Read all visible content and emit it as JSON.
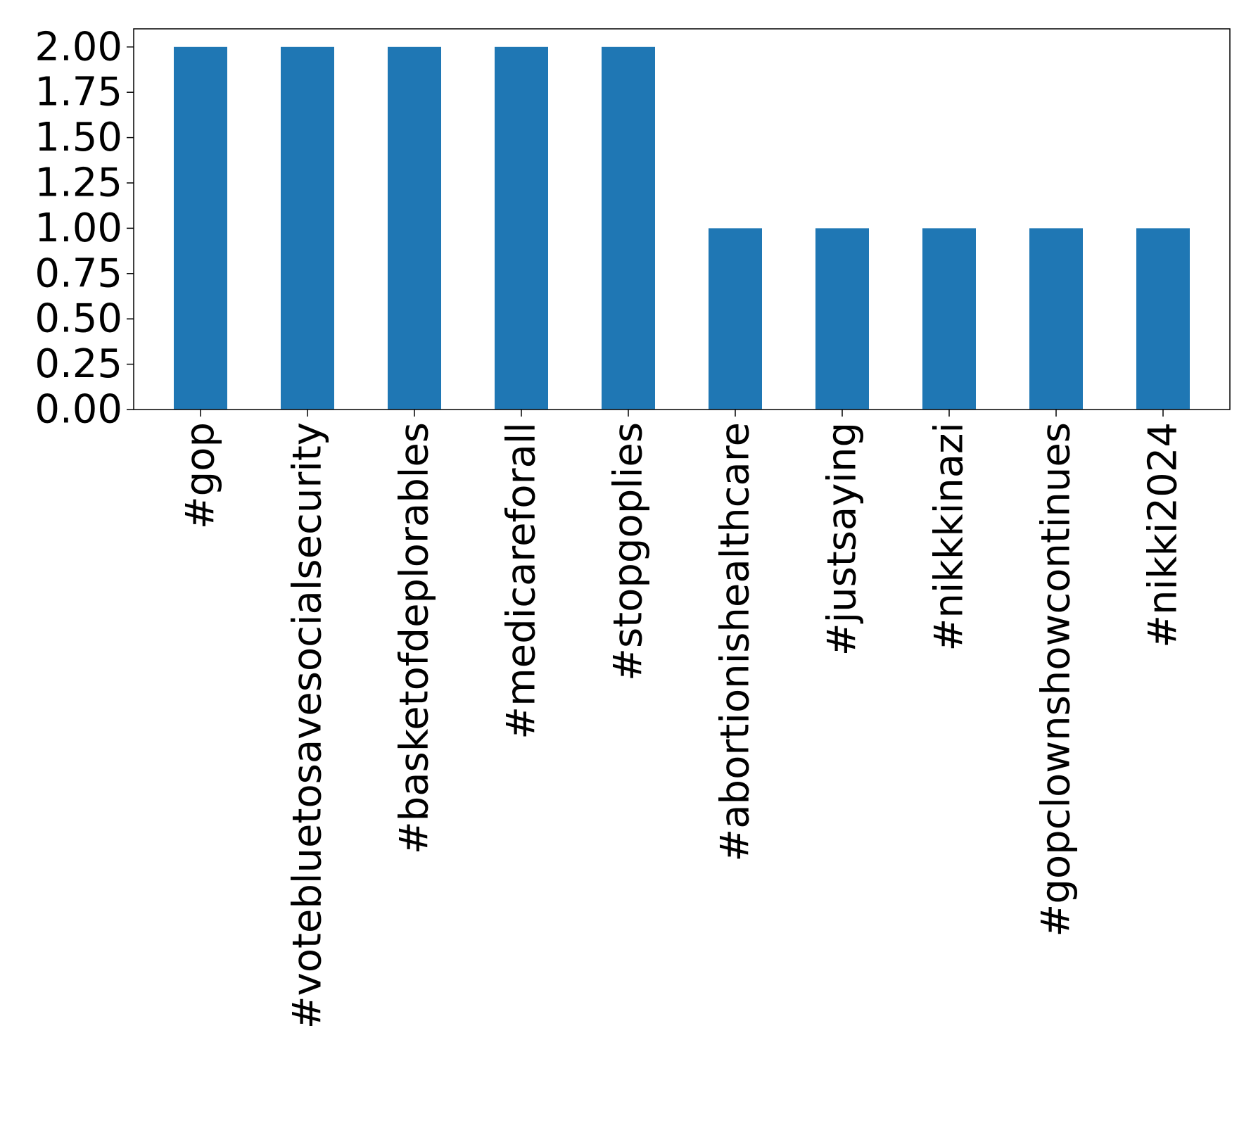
{
  "chart_data": {
    "type": "bar",
    "title": "",
    "xlabel": "",
    "ylabel": "",
    "categories": [
      "#gop",
      "#votebluetosavesocialsecurity",
      "#basketofdeplorables",
      "#medicareforall",
      "#stopgoplies",
      "#abortionishealthcare",
      "#justsaying",
      "#nikkkinazi",
      "#gopclownshowcontinues",
      "#nikki2024"
    ],
    "values": [
      2,
      2,
      2,
      2,
      2,
      1,
      1,
      1,
      1,
      1
    ],
    "ylim": [
      0,
      2.1
    ],
    "yticks": [
      "0.00",
      "0.25",
      "0.50",
      "0.75",
      "1.00",
      "1.25",
      "1.50",
      "1.75",
      "2.00"
    ],
    "bar_color": "#1f77b4",
    "grid": false,
    "legend": "none"
  }
}
